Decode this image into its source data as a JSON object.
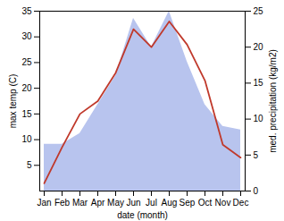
{
  "chart_data": {
    "type": "line",
    "xlabel": "date (month)",
    "ylabel": "max temp (C)",
    "y2label": "med. precipitation (kg/m2)",
    "categories": [
      "Jan",
      "Feb",
      "Mar",
      "Apr",
      "May",
      "Jun",
      "Jul",
      "Aug",
      "Sep",
      "Oct",
      "Nov",
      "Dec"
    ],
    "series": [
      {
        "type": "area",
        "axis": "y2",
        "color": "#b8c4ee",
        "values": [
          6.5,
          6.5,
          8.0,
          12.0,
          16.0,
          24.0,
          20.0,
          25.0,
          18.0,
          12.0,
          9.0,
          8.5
        ]
      },
      {
        "type": "line",
        "color": "#c0392b",
        "values": [
          1.5,
          8.5,
          15.0,
          17.5,
          23.0,
          31.5,
          28.0,
          33.0,
          28.5,
          21.5,
          9.0,
          6.5
        ]
      }
    ],
    "ylim": [
      0,
      35
    ],
    "yticks": [
      5,
      10,
      15,
      20,
      25,
      30,
      35
    ],
    "y2lim": [
      0,
      25
    ],
    "y2ticks": [
      0,
      5,
      10,
      15,
      20,
      25
    ],
    "grid": false
  }
}
